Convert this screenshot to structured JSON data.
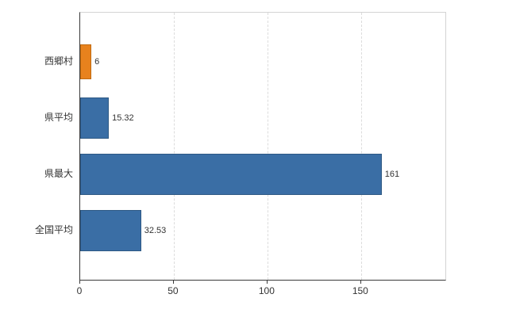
{
  "chart_data": {
    "type": "bar",
    "orientation": "horizontal",
    "title": "",
    "xlabel": "",
    "ylabel": "",
    "categories": [
      "西郷村",
      "県平均",
      "県最大",
      "全国平均"
    ],
    "values": [
      6,
      15.32,
      161,
      32.53
    ],
    "value_labels": [
      "6",
      "15.32",
      "161",
      "32.53"
    ],
    "bar_colors": [
      "#e8821d",
      "#3a6ea5",
      "#3a6ea5",
      "#3a6ea5"
    ],
    "bar_border_colors": [
      "#c06a10",
      "#2e5984",
      "#2e5984",
      "#2e5984"
    ],
    "x_ticks": [
      0,
      50,
      100,
      150
    ],
    "x_tick_labels": [
      "0",
      "50",
      "100",
      "150"
    ],
    "xlim": [
      0,
      195
    ],
    "grid": "vertical-dashed",
    "legend": "none"
  },
  "colors": {
    "background": "#ffffff",
    "axis": "#3a3a3a",
    "frame": "#d4d4d4",
    "grid": "#dcdcdc",
    "text": "#333333"
  }
}
